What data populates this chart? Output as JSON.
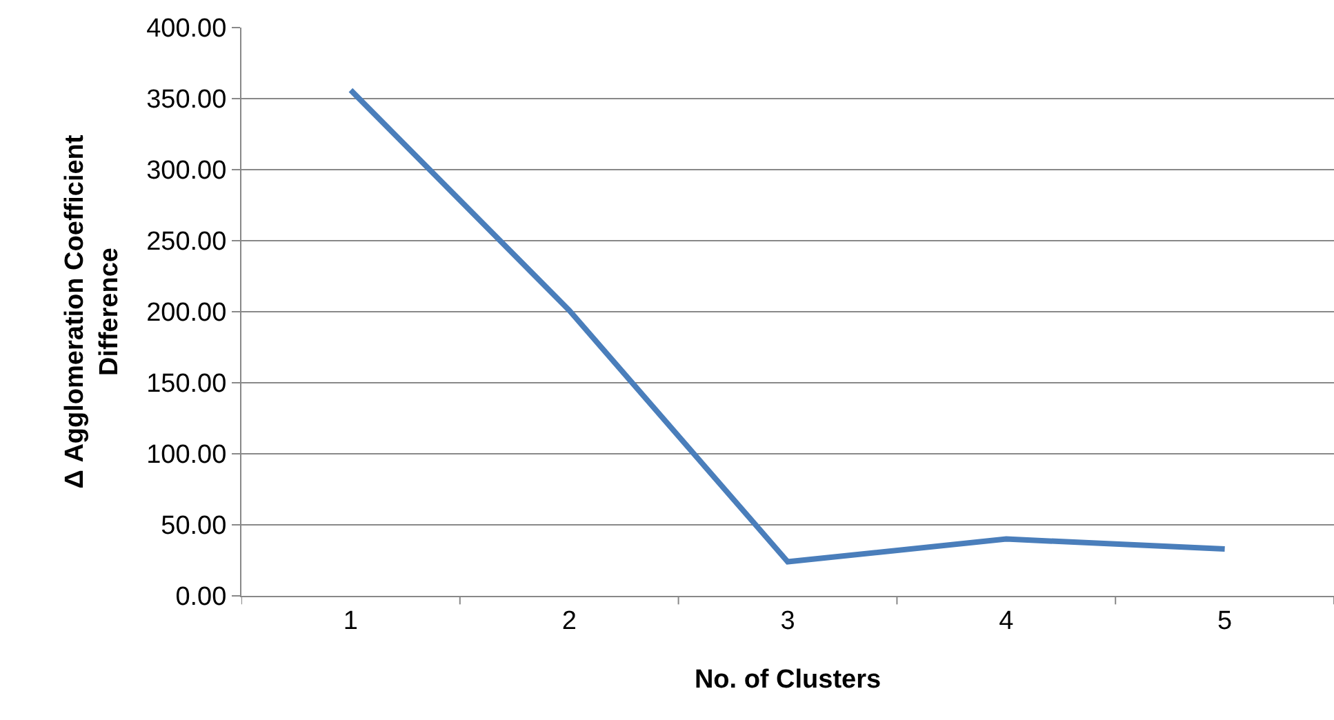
{
  "chart_data": {
    "type": "line",
    "xlabel": "No. of Clusters",
    "ylabel": "Δ Agglomeration Coefficient\nDifference",
    "categories": [
      "1",
      "2",
      "3",
      "4",
      "5"
    ],
    "series": [
      {
        "color": "#4a7ebb",
        "values": [
          356,
          201,
          24,
          40,
          33
        ]
      }
    ],
    "ylim": [
      0,
      400
    ],
    "yticks": [
      {
        "value": 0,
        "label": "0.00"
      },
      {
        "value": 50,
        "label": "50.00"
      },
      {
        "value": 100,
        "label": "100.00"
      },
      {
        "value": 150,
        "label": "150.00"
      },
      {
        "value": 200,
        "label": "200.00"
      },
      {
        "value": 250,
        "label": "250.00"
      },
      {
        "value": 300,
        "label": "300.00"
      },
      {
        "value": 350,
        "label": "350.00"
      },
      {
        "value": 400,
        "label": "400.00"
      }
    ],
    "grid": "y",
    "marker": "none",
    "line_style": "solid"
  }
}
